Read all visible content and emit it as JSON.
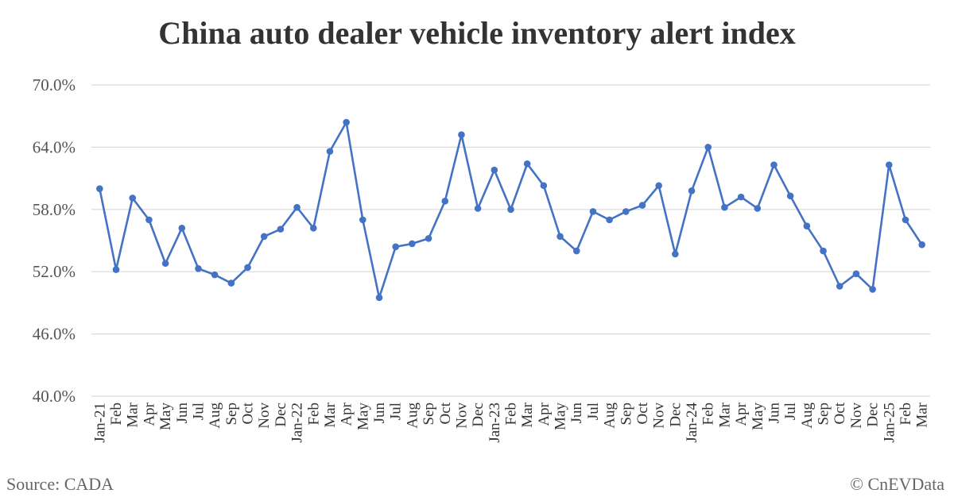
{
  "chart_data": {
    "type": "line",
    "title": "China auto dealer vehicle inventory alert index",
    "xlabel": "",
    "ylabel": "",
    "ylim": [
      40,
      70
    ],
    "yticks": [
      40,
      46,
      52,
      58,
      64,
      70
    ],
    "ytick_labels": [
      "40.0%",
      "46.0%",
      "52.0%",
      "58.0%",
      "64.0%",
      "70.0%"
    ],
    "grid": true,
    "line_color": "#4472c4",
    "categories": [
      "Jan-21",
      "Feb",
      "Mar",
      "Apr",
      "May",
      "Jun",
      "Jul",
      "Aug",
      "Sep",
      "Oct",
      "Nov",
      "Dec",
      "Jan-22",
      "Feb",
      "Mar",
      "Apr",
      "May",
      "Jun",
      "Jul",
      "Aug",
      "Sep",
      "Oct",
      "Nov",
      "Dec",
      "Jan-23",
      "Feb",
      "Mar",
      "Apr",
      "May",
      "Jun",
      "Jul",
      "Aug",
      "Sep",
      "Oct",
      "Nov",
      "Dec",
      "Jan-24",
      "Feb",
      "Mar",
      "Apr",
      "May",
      "Jun",
      "Jul",
      "Aug",
      "Sep",
      "Oct",
      "Nov",
      "Dec",
      "Jan-25",
      "Feb",
      "Mar"
    ],
    "series": [
      {
        "values": [
          60.0,
          52.2,
          59.1,
          57.0,
          52.8,
          56.2,
          52.3,
          51.7,
          50.9,
          52.4,
          55.4,
          56.1,
          58.2,
          56.2,
          63.6,
          66.4,
          57.0,
          49.5,
          54.4,
          54.7,
          55.2,
          58.8,
          65.2,
          58.1,
          61.8,
          58.0,
          62.4,
          60.3,
          55.4,
          54.0,
          57.8,
          57.0,
          57.8,
          58.4,
          60.3,
          53.7,
          59.8,
          64.0,
          58.2,
          59.2,
          58.1,
          62.3,
          59.3,
          56.4,
          54.0,
          50.6,
          51.8,
          50.3,
          62.3,
          57.0,
          54.6
        ]
      }
    ]
  },
  "footer": {
    "source": "Source: CADA",
    "credit": "© CnEVData"
  }
}
